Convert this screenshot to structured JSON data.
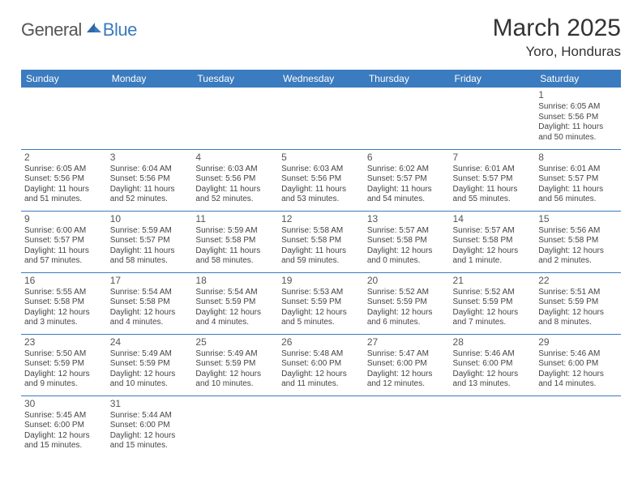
{
  "logo": {
    "general": "General",
    "blue": "Blue"
  },
  "title": "March 2025",
  "location": "Yoro, Honduras",
  "dayHeaders": [
    "Sunday",
    "Monday",
    "Tuesday",
    "Wednesday",
    "Thursday",
    "Friday",
    "Saturday"
  ],
  "colors": {
    "header_bg": "#3b7bbf",
    "header_text": "#ffffff",
    "line": "#3b7bbf"
  },
  "weeks": [
    [
      null,
      null,
      null,
      null,
      null,
      null,
      {
        "n": "1",
        "sr": "6:05 AM",
        "ss": "5:56 PM",
        "dl": "11 hours and 50 minutes."
      }
    ],
    [
      {
        "n": "2",
        "sr": "6:05 AM",
        "ss": "5:56 PM",
        "dl": "11 hours and 51 minutes."
      },
      {
        "n": "3",
        "sr": "6:04 AM",
        "ss": "5:56 PM",
        "dl": "11 hours and 52 minutes."
      },
      {
        "n": "4",
        "sr": "6:03 AM",
        "ss": "5:56 PM",
        "dl": "11 hours and 52 minutes."
      },
      {
        "n": "5",
        "sr": "6:03 AM",
        "ss": "5:56 PM",
        "dl": "11 hours and 53 minutes."
      },
      {
        "n": "6",
        "sr": "6:02 AM",
        "ss": "5:57 PM",
        "dl": "11 hours and 54 minutes."
      },
      {
        "n": "7",
        "sr": "6:01 AM",
        "ss": "5:57 PM",
        "dl": "11 hours and 55 minutes."
      },
      {
        "n": "8",
        "sr": "6:01 AM",
        "ss": "5:57 PM",
        "dl": "11 hours and 56 minutes."
      }
    ],
    [
      {
        "n": "9",
        "sr": "6:00 AM",
        "ss": "5:57 PM",
        "dl": "11 hours and 57 minutes."
      },
      {
        "n": "10",
        "sr": "5:59 AM",
        "ss": "5:57 PM",
        "dl": "11 hours and 58 minutes."
      },
      {
        "n": "11",
        "sr": "5:59 AM",
        "ss": "5:58 PM",
        "dl": "11 hours and 58 minutes."
      },
      {
        "n": "12",
        "sr": "5:58 AM",
        "ss": "5:58 PM",
        "dl": "11 hours and 59 minutes."
      },
      {
        "n": "13",
        "sr": "5:57 AM",
        "ss": "5:58 PM",
        "dl": "12 hours and 0 minutes."
      },
      {
        "n": "14",
        "sr": "5:57 AM",
        "ss": "5:58 PM",
        "dl": "12 hours and 1 minute."
      },
      {
        "n": "15",
        "sr": "5:56 AM",
        "ss": "5:58 PM",
        "dl": "12 hours and 2 minutes."
      }
    ],
    [
      {
        "n": "16",
        "sr": "5:55 AM",
        "ss": "5:58 PM",
        "dl": "12 hours and 3 minutes."
      },
      {
        "n": "17",
        "sr": "5:54 AM",
        "ss": "5:58 PM",
        "dl": "12 hours and 4 minutes."
      },
      {
        "n": "18",
        "sr": "5:54 AM",
        "ss": "5:59 PM",
        "dl": "12 hours and 4 minutes."
      },
      {
        "n": "19",
        "sr": "5:53 AM",
        "ss": "5:59 PM",
        "dl": "12 hours and 5 minutes."
      },
      {
        "n": "20",
        "sr": "5:52 AM",
        "ss": "5:59 PM",
        "dl": "12 hours and 6 minutes."
      },
      {
        "n": "21",
        "sr": "5:52 AM",
        "ss": "5:59 PM",
        "dl": "12 hours and 7 minutes."
      },
      {
        "n": "22",
        "sr": "5:51 AM",
        "ss": "5:59 PM",
        "dl": "12 hours and 8 minutes."
      }
    ],
    [
      {
        "n": "23",
        "sr": "5:50 AM",
        "ss": "5:59 PM",
        "dl": "12 hours and 9 minutes."
      },
      {
        "n": "24",
        "sr": "5:49 AM",
        "ss": "5:59 PM",
        "dl": "12 hours and 10 minutes."
      },
      {
        "n": "25",
        "sr": "5:49 AM",
        "ss": "5:59 PM",
        "dl": "12 hours and 10 minutes."
      },
      {
        "n": "26",
        "sr": "5:48 AM",
        "ss": "6:00 PM",
        "dl": "12 hours and 11 minutes."
      },
      {
        "n": "27",
        "sr": "5:47 AM",
        "ss": "6:00 PM",
        "dl": "12 hours and 12 minutes."
      },
      {
        "n": "28",
        "sr": "5:46 AM",
        "ss": "6:00 PM",
        "dl": "12 hours and 13 minutes."
      },
      {
        "n": "29",
        "sr": "5:46 AM",
        "ss": "6:00 PM",
        "dl": "12 hours and 14 minutes."
      }
    ],
    [
      {
        "n": "30",
        "sr": "5:45 AM",
        "ss": "6:00 PM",
        "dl": "12 hours and 15 minutes."
      },
      {
        "n": "31",
        "sr": "5:44 AM",
        "ss": "6:00 PM",
        "dl": "12 hours and 15 minutes."
      },
      null,
      null,
      null,
      null,
      null
    ]
  ],
  "labels": {
    "sunrise": "Sunrise: ",
    "sunset": "Sunset: ",
    "daylight": "Daylight: "
  }
}
